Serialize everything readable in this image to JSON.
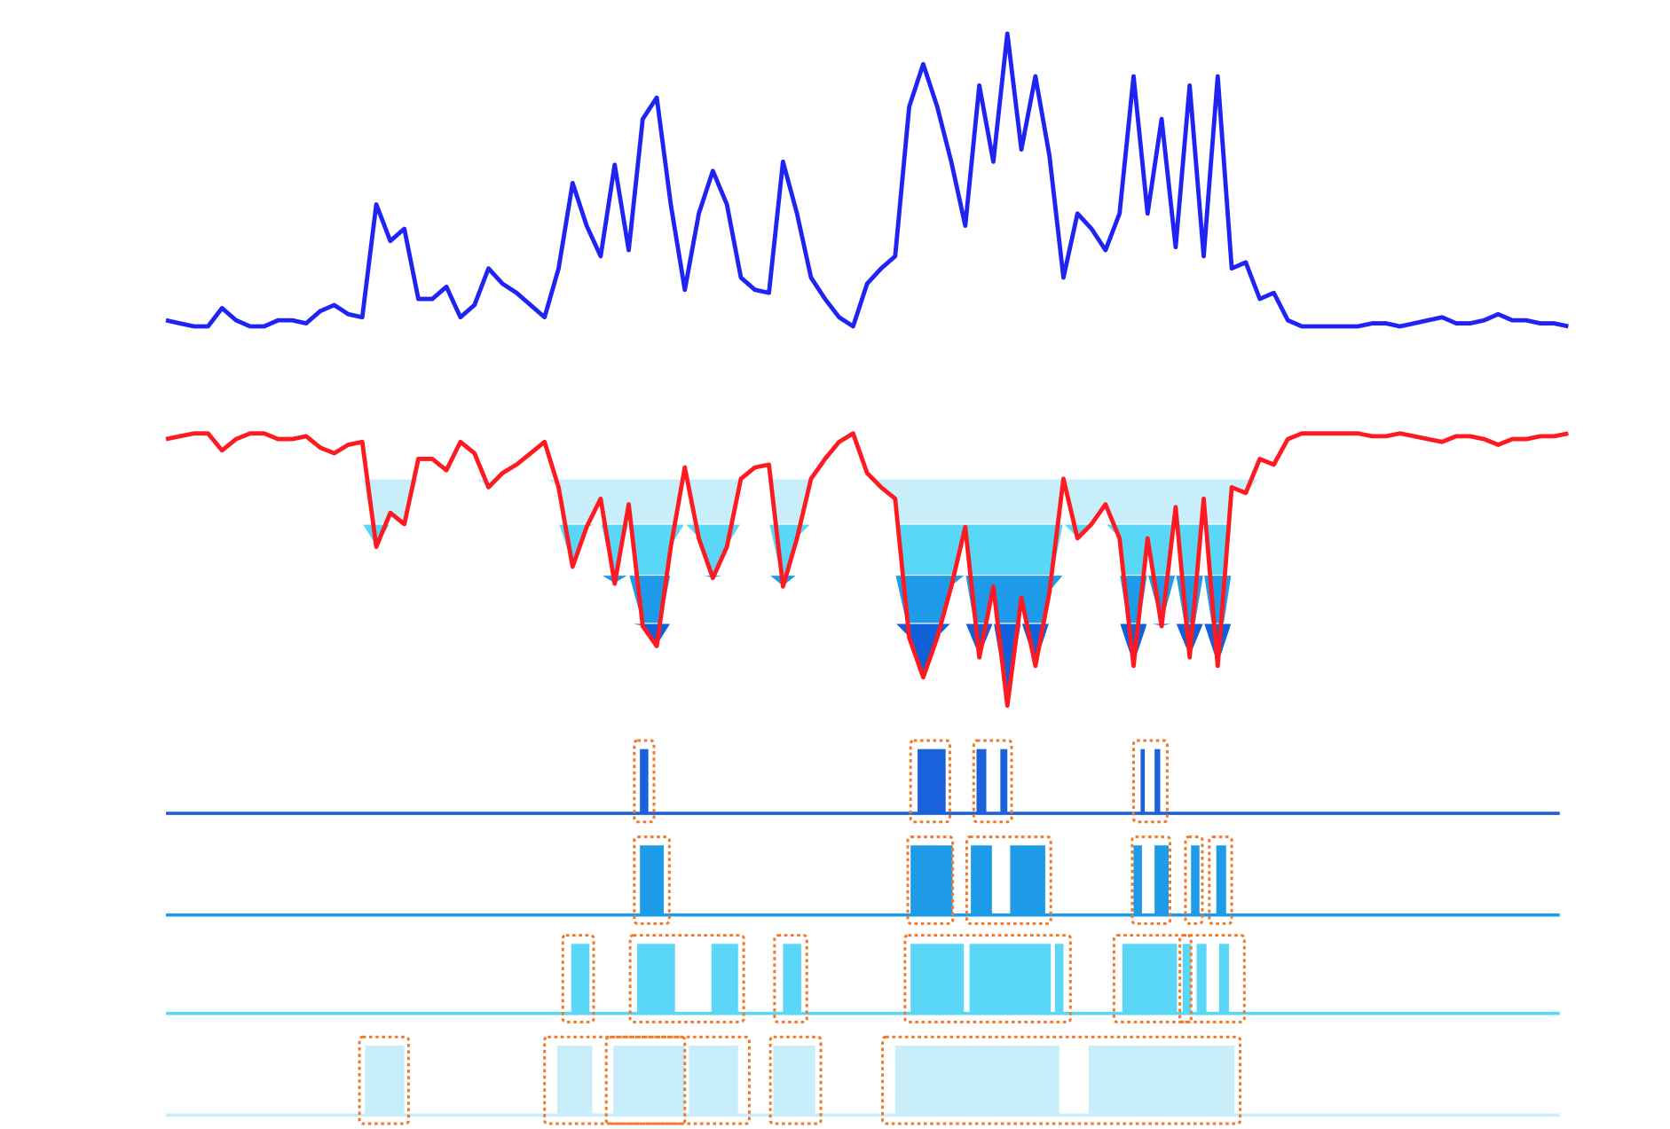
{
  "chart_data": {
    "type": "line",
    "xlim": [
      0,
      100
    ],
    "x": [
      0,
      1,
      2,
      3,
      4,
      5,
      6,
      7,
      8,
      9,
      10,
      11,
      12,
      13,
      14,
      15,
      16,
      17,
      18,
      19,
      20,
      21,
      22,
      23,
      24,
      25,
      26,
      27,
      28,
      29,
      30,
      31,
      32,
      33,
      34,
      35,
      36,
      37,
      38,
      39,
      40,
      41,
      42,
      43,
      44,
      45,
      46,
      47,
      48,
      49,
      50,
      51,
      52,
      53,
      54,
      55,
      56,
      57,
      58,
      59,
      60,
      61,
      62,
      63,
      64,
      65,
      66,
      67,
      68,
      69,
      70,
      71,
      72,
      73,
      74,
      75,
      76,
      77,
      78,
      79,
      80,
      81,
      82,
      83,
      84,
      85,
      86,
      87,
      88,
      89,
      90,
      91,
      92,
      93,
      94,
      95,
      96,
      97,
      98,
      99,
      100
    ],
    "series": [
      {
        "color": "#1f24f2",
        "ylim": [
          0,
          100
        ],
        "values": [
          2,
          1,
          0,
          0,
          6,
          2,
          0,
          0,
          2,
          2,
          1,
          5,
          7,
          4,
          3,
          40,
          28,
          32,
          9,
          9,
          13,
          3,
          7,
          19,
          14,
          11,
          7,
          3,
          19,
          47,
          33,
          23,
          53,
          25,
          68,
          75,
          40,
          12,
          37,
          51,
          40,
          16,
          12,
          11,
          54,
          37,
          16,
          9,
          3,
          0,
          14,
          19,
          23,
          72,
          86,
          72,
          54,
          33,
          79,
          54,
          96,
          58,
          82,
          56,
          16,
          37,
          32,
          25,
          37,
          82,
          37,
          68,
          26,
          79,
          23,
          82,
          19,
          21,
          9,
          11,
          2,
          0,
          0,
          0,
          0,
          0,
          1,
          1,
          0,
          1,
          2,
          3,
          1,
          1,
          2,
          4,
          2,
          2,
          1,
          1,
          0
        ]
      },
      {
        "color": "#ff1a22",
        "ylim": [
          -100,
          0
        ],
        "values": [
          -2,
          -1,
          0,
          0,
          -6,
          -2,
          0,
          0,
          -2,
          -2,
          -1,
          -5,
          -7,
          -4,
          -3,
          -40,
          -28,
          -32,
          -9,
          -9,
          -13,
          -3,
          -7,
          -19,
          -14,
          -11,
          -7,
          -3,
          -19,
          -47,
          -33,
          -23,
          -53,
          -25,
          -68,
          -75,
          -40,
          -12,
          -37,
          -51,
          -40,
          -16,
          -12,
          -11,
          -54,
          -37,
          -16,
          -9,
          -3,
          0,
          -14,
          -19,
          -23,
          -72,
          -86,
          -72,
          -54,
          -33,
          -79,
          -54,
          -96,
          -58,
          -82,
          -56,
          -16,
          -37,
          -32,
          -25,
          -37,
          -82,
          -37,
          -68,
          -26,
          -79,
          -23,
          -82,
          -19,
          -21,
          -9,
          -11,
          -2,
          0,
          0,
          0,
          0,
          0,
          -1,
          -1,
          0,
          -1,
          -2,
          -3,
          -1,
          -1,
          -2,
          -4,
          -2,
          -2,
          -1,
          -1,
          0
        ]
      }
    ],
    "thresholds": [
      {
        "value": -16,
        "color": "#c8eefa"
      },
      {
        "value": -32,
        "color": "#5ad7f7"
      },
      {
        "value": -50,
        "color": "#1e9be8"
      },
      {
        "value": -67,
        "color": "#1060d8"
      }
    ],
    "box_color": "#f07a2a",
    "events": [
      {
        "color": "#1a62dc",
        "segments": [
          [
            33.8,
            34.4
          ],
          [
            53.6,
            55.6
          ],
          [
            57.8,
            58.5
          ],
          [
            59.5,
            60.0
          ],
          [
            69.5,
            69.8
          ],
          [
            70.5,
            70.9
          ]
        ],
        "boxes": [
          [
            33.4,
            34.8
          ],
          [
            53.1,
            55.9
          ],
          [
            57.6,
            60.3
          ],
          [
            69.0,
            71.4
          ]
        ]
      },
      {
        "color": "#1e9be8",
        "segments": [
          [
            33.8,
            35.5
          ],
          [
            53.1,
            56.1
          ],
          [
            57.4,
            58.9
          ],
          [
            60.2,
            62.7
          ],
          [
            69.0,
            69.6
          ],
          [
            70.5,
            71.5
          ],
          [
            73.1,
            73.7
          ],
          [
            74.9,
            75.6
          ]
        ],
        "boxes": [
          [
            33.4,
            35.9
          ],
          [
            52.9,
            56.1
          ],
          [
            57.1,
            63.1
          ],
          [
            68.9,
            71.6
          ],
          [
            72.7,
            73.9
          ],
          [
            74.4,
            76.0
          ]
        ]
      },
      {
        "color": "#5ad7f7",
        "segments": [
          [
            28.9,
            30.2
          ],
          [
            33.6,
            36.3
          ],
          [
            38.9,
            40.8
          ],
          [
            44.0,
            45.3
          ],
          [
            53.1,
            56.9
          ],
          [
            57.3,
            63.1
          ],
          [
            63.4,
            64.0
          ],
          [
            68.2,
            72.1
          ],
          [
            72.5,
            73.1
          ],
          [
            73.5,
            74.2
          ],
          [
            75.1,
            75.8
          ]
        ],
        "boxes": [
          [
            28.3,
            30.5
          ],
          [
            33.1,
            41.2
          ],
          [
            43.4,
            45.7
          ],
          [
            52.7,
            64.5
          ],
          [
            67.6,
            73.1
          ],
          [
            72.3,
            76.9
          ]
        ]
      },
      {
        "color": "#c8eefa",
        "segments": [
          [
            14.2,
            17.0
          ],
          [
            27.9,
            30.4
          ],
          [
            31.9,
            37.0
          ],
          [
            37.3,
            40.8
          ],
          [
            43.3,
            46.3
          ],
          [
            52.0,
            63.7
          ],
          [
            65.8,
            76.2
          ]
        ],
        "boxes": [
          [
            13.8,
            17.3
          ],
          [
            27.0,
            37.0
          ],
          [
            31.4,
            41.6
          ],
          [
            43.1,
            46.7
          ],
          [
            51.1,
            76.6
          ]
        ]
      }
    ]
  }
}
